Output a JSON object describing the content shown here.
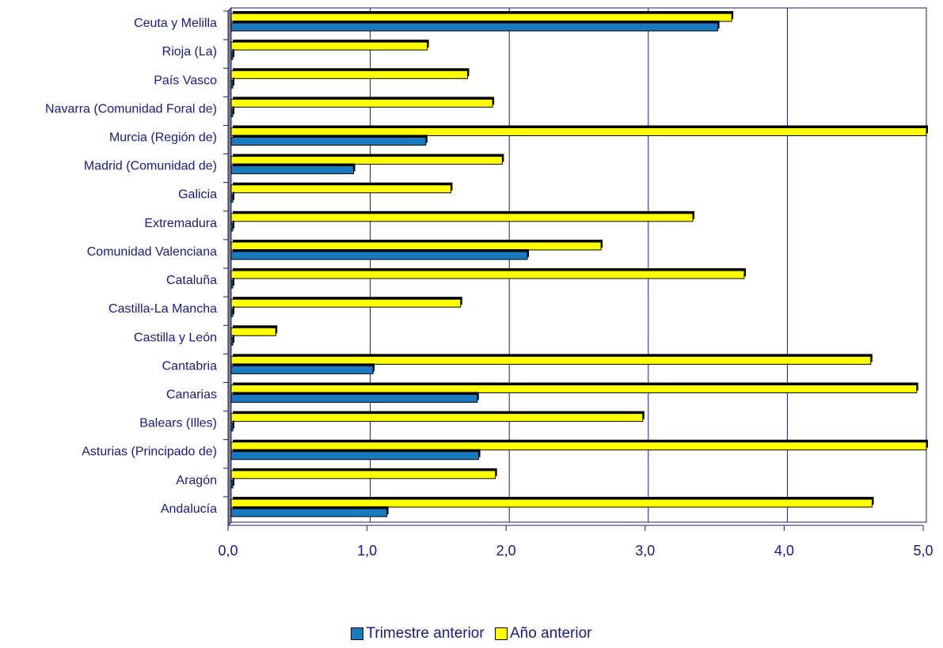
{
  "chart_data": {
    "type": "bar",
    "orientation": "horizontal",
    "categories": [
      "Ceuta y Melilla",
      "Rioja (La)",
      "País Vasco",
      "Navarra (Comunidad Foral de)",
      "Murcia (Región de)",
      "Madrid (Comunidad de)",
      "Galicia",
      "Extremadura",
      "Comunidad Valenciana",
      "Cataluña",
      "Castilla-La Mancha",
      "Castilla y León",
      "Cantabria",
      "Canarias",
      "Balears (Illes)",
      "Asturias (Principado de)",
      "Aragón",
      "Andalucía"
    ],
    "series": [
      {
        "name": "Trimestre anterior",
        "color": "#1a7abf",
        "values": [
          3.5,
          0.0,
          0.0,
          0.0,
          1.4,
          0.88,
          0.0,
          0.0,
          2.13,
          0.0,
          0.0,
          0.0,
          1.02,
          1.77,
          0.0,
          1.78,
          0.0,
          1.12
        ]
      },
      {
        "name": "Año anterior",
        "color": "#ffff00",
        "values": [
          3.6,
          1.41,
          1.7,
          1.88,
          5.0,
          1.95,
          1.58,
          3.32,
          2.66,
          3.69,
          1.65,
          0.32,
          4.6,
          4.93,
          2.96,
          5.0,
          1.9,
          4.61
        ]
      }
    ],
    "xlim": [
      0,
      5
    ],
    "xticks": [
      "0,0",
      "1,0",
      "2,0",
      "3,0",
      "4,0",
      "5,0"
    ],
    "grid": true,
    "legend_position": "bottom",
    "title": "",
    "xlabel": "",
    "ylabel": ""
  },
  "legend": {
    "series1": "Trimestre anterior",
    "series2": "Año anterior"
  }
}
